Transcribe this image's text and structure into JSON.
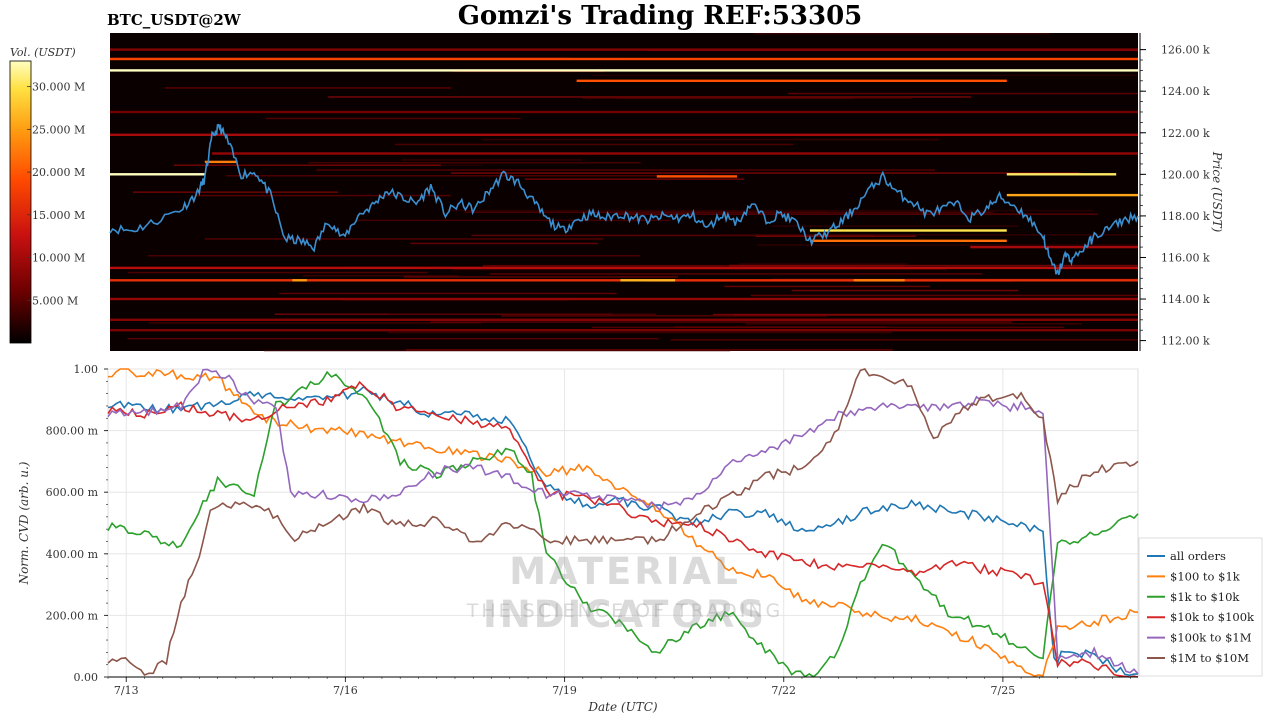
{
  "title": "Gomzi's Trading REF:53305",
  "pair_label": "BTC_USDT@2W",
  "watermark": {
    "title": "MATERIAL INDICATORS",
    "subtitle": "THE SCIENCE OF TRADING"
  },
  "colors": {
    "background": "#ffffff",
    "heatmap_bg": "#0a0000",
    "price_line": "#3a8fd0",
    "grid": "#e6e6e6"
  },
  "chart_data": [
    {
      "type": "heatmap",
      "name": "orderbook-heatmap",
      "ylabel": "Price (USDT)",
      "ylim": [
        111500,
        126800
      ],
      "yticks": [
        112000,
        114000,
        116000,
        118000,
        120000,
        122000,
        124000,
        126000
      ],
      "ytick_labels": [
        "112.00 k",
        "114.00 k",
        "116.00 k",
        "118.00 k",
        "120.00 k",
        "122.00 k",
        "124.00 k",
        "126.00 k"
      ],
      "xlim": [
        0,
        14.1
      ],
      "colorbar": {
        "label": "Vol. (USDT)",
        "range": [
          0,
          33000000
        ],
        "ticks": [
          5000000,
          10000000,
          15000000,
          20000000,
          25000000,
          30000000
        ],
        "tick_labels": [
          "5.000 M",
          "10.000 M",
          "15.000 M",
          "20.000 M",
          "25.000 M",
          "30.000 M"
        ],
        "gradient": [
          "#000000",
          "#6b0000",
          "#c81010",
          "#ff4a00",
          "#ff9a10",
          "#ffe040",
          "#ffffc0"
        ]
      },
      "walls": [
        {
          "price": 125000,
          "x0": 0,
          "x1": 14.1,
          "vol": 33000000
        },
        {
          "price": 125550,
          "x0": 0,
          "x1": 14.1,
          "vol": 16000000
        },
        {
          "price": 124500,
          "x0": 6.4,
          "x1": 12.3,
          "vol": 17000000
        },
        {
          "price": 120000,
          "x0": 0,
          "x1": 1.3,
          "vol": 33000000
        },
        {
          "price": 120000,
          "x0": 12.3,
          "x1": 13.8,
          "vol": 29000000
        },
        {
          "price": 119900,
          "x0": 7.5,
          "x1": 8.6,
          "vol": 17000000
        },
        {
          "price": 119000,
          "x0": 12.3,
          "x1": 14.1,
          "vol": 23000000
        },
        {
          "price": 121900,
          "x0": 0,
          "x1": 14.1,
          "vol": 9000000
        },
        {
          "price": 121000,
          "x0": 1.4,
          "x1": 14.1,
          "vol": 8000000
        },
        {
          "price": 120600,
          "x0": 1.3,
          "x1": 1.75,
          "vol": 20000000
        },
        {
          "price": 117300,
          "x0": 9.6,
          "x1": 12.3,
          "vol": 28000000
        },
        {
          "price": 116800,
          "x0": 9.6,
          "x1": 12.3,
          "vol": 19000000
        },
        {
          "price": 116500,
          "x0": 11.8,
          "x1": 14.1,
          "vol": 9000000
        },
        {
          "price": 115500,
          "x0": 0,
          "x1": 14.1,
          "vol": 10000000
        },
        {
          "price": 114900,
          "x0": 0,
          "x1": 14.1,
          "vol": 14000000
        },
        {
          "price": 114900,
          "x0": 7.0,
          "x1": 7.75,
          "vol": 24000000
        },
        {
          "price": 114900,
          "x0": 2.5,
          "x1": 2.7,
          "vol": 22000000
        },
        {
          "price": 114900,
          "x0": 10.2,
          "x1": 10.9,
          "vol": 20000000
        },
        {
          "price": 114000,
          "x0": 0,
          "x1": 14.1,
          "vol": 8000000
        },
        {
          "price": 113000,
          "x0": 0,
          "x1": 14.1,
          "vol": 7000000
        },
        {
          "price": 112500,
          "x0": 0,
          "x1": 14.1,
          "vol": 6500000
        },
        {
          "price": 123000,
          "x0": 0,
          "x1": 14.1,
          "vol": 6000000
        },
        {
          "price": 126000,
          "x0": 0,
          "x1": 14.1,
          "vol": 7000000
        }
      ],
      "price_series": {
        "name": "price",
        "points": [
          [
            0,
            117400
          ],
          [
            0.3,
            117300
          ],
          [
            0.6,
            117700
          ],
          [
            1.0,
            118400
          ],
          [
            1.2,
            119100
          ],
          [
            1.3,
            119800
          ],
          [
            1.4,
            121800
          ],
          [
            1.5,
            122300
          ],
          [
            1.6,
            121700
          ],
          [
            1.8,
            120000
          ],
          [
            2.0,
            120100
          ],
          [
            2.2,
            119000
          ],
          [
            2.4,
            116900
          ],
          [
            2.6,
            116800
          ],
          [
            2.8,
            116500
          ],
          [
            3.0,
            117800
          ],
          [
            3.2,
            116900
          ],
          [
            3.4,
            118000
          ],
          [
            3.6,
            118500
          ],
          [
            3.8,
            119200
          ],
          [
            4.0,
            118900
          ],
          [
            4.2,
            118600
          ],
          [
            4.4,
            119400
          ],
          [
            4.6,
            118100
          ],
          [
            4.8,
            118600
          ],
          [
            5.0,
            118300
          ],
          [
            5.2,
            119200
          ],
          [
            5.4,
            120000
          ],
          [
            5.6,
            119600
          ],
          [
            5.8,
            118700
          ],
          [
            6.0,
            117800
          ],
          [
            6.2,
            117300
          ],
          [
            6.4,
            117800
          ],
          [
            6.6,
            118100
          ],
          [
            6.8,
            117900
          ],
          [
            7.0,
            118100
          ],
          [
            7.2,
            117900
          ],
          [
            7.4,
            117800
          ],
          [
            7.6,
            118000
          ],
          [
            7.8,
            117900
          ],
          [
            8.0,
            118000
          ],
          [
            8.2,
            117400
          ],
          [
            8.4,
            118100
          ],
          [
            8.6,
            117700
          ],
          [
            8.8,
            118600
          ],
          [
            9.0,
            117800
          ],
          [
            9.2,
            118100
          ],
          [
            9.4,
            117700
          ],
          [
            9.6,
            116800
          ],
          [
            9.8,
            117100
          ],
          [
            10.0,
            117600
          ],
          [
            10.2,
            118300
          ],
          [
            10.4,
            119200
          ],
          [
            10.6,
            119900
          ],
          [
            10.8,
            119100
          ],
          [
            11.0,
            118700
          ],
          [
            11.2,
            118100
          ],
          [
            11.4,
            118300
          ],
          [
            11.6,
            118600
          ],
          [
            11.8,
            117900
          ],
          [
            12.0,
            118300
          ],
          [
            12.2,
            118900
          ],
          [
            12.4,
            118500
          ],
          [
            12.6,
            117900
          ],
          [
            12.8,
            117000
          ],
          [
            12.9,
            115800
          ],
          [
            13.0,
            115200
          ],
          [
            13.1,
            116100
          ],
          [
            13.2,
            115900
          ],
          [
            13.4,
            116600
          ],
          [
            13.5,
            117000
          ],
          [
            13.7,
            117400
          ],
          [
            13.9,
            117800
          ],
          [
            14.1,
            118000
          ]
        ]
      }
    },
    {
      "type": "line",
      "name": "normalized-cvd",
      "title": "",
      "xlabel": "Date (UTC)",
      "ylabel": "Norm. CVD (arb. u.)",
      "ylim": [
        0,
        1
      ],
      "yticks": [
        0,
        0.2,
        0.4,
        0.6,
        0.8,
        1.0
      ],
      "ytick_labels": [
        "0.00",
        "200.00 m",
        "400.00 m",
        "600.00 m",
        "800.00 m",
        "1.00"
      ],
      "xlim": [
        0,
        14.1
      ],
      "xticks": [
        0.25,
        3.25,
        6.25,
        9.25,
        12.25
      ],
      "xtick_labels": [
        "7/13",
        "7/16",
        "7/19",
        "7/22",
        "7/25"
      ],
      "legend": "right",
      "series": [
        {
          "name": "all orders",
          "color": "#1f77b4",
          "x": [
            0,
            0.5,
            1.0,
            1.5,
            2.0,
            2.5,
            3.0,
            3.5,
            4.0,
            4.5,
            5.0,
            5.5,
            6.0,
            6.5,
            7.0,
            7.5,
            8.0,
            8.5,
            9.0,
            9.5,
            10.0,
            10.5,
            11.0,
            11.5,
            12.0,
            12.5,
            12.8,
            12.95,
            13.1,
            13.5,
            13.8,
            14.1
          ],
          "y": [
            0.89,
            0.87,
            0.87,
            0.89,
            0.92,
            0.91,
            0.9,
            0.93,
            0.89,
            0.85,
            0.85,
            0.83,
            0.62,
            0.56,
            0.57,
            0.55,
            0.5,
            0.53,
            0.53,
            0.48,
            0.5,
            0.55,
            0.56,
            0.54,
            0.52,
            0.49,
            0.47,
            0.05,
            0.08,
            0.07,
            0.03,
            0.01
          ]
        },
        {
          "name": "$100 to $1k",
          "color": "#ff7f0e",
          "x": [
            0,
            0.5,
            1.0,
            1.5,
            2.0,
            2.5,
            3.0,
            3.5,
            4.0,
            4.5,
            5.0,
            5.5,
            6.0,
            6.5,
            7.0,
            7.5,
            8.0,
            8.5,
            9.0,
            9.5,
            10.0,
            10.5,
            11.0,
            11.5,
            12.0,
            12.5,
            12.8,
            13.0,
            13.5,
            14.1
          ],
          "y": [
            0.99,
            0.99,
            0.98,
            0.97,
            0.85,
            0.82,
            0.8,
            0.79,
            0.76,
            0.74,
            0.72,
            0.7,
            0.66,
            0.68,
            0.61,
            0.55,
            0.45,
            0.35,
            0.33,
            0.25,
            0.23,
            0.2,
            0.19,
            0.15,
            0.1,
            0.02,
            0.0,
            0.16,
            0.18,
            0.21
          ]
        },
        {
          "name": "$1k to $10k",
          "color": "#2ca02c",
          "x": [
            0,
            0.5,
            1.0,
            1.3,
            1.5,
            2.0,
            2.3,
            2.6,
            3.0,
            3.3,
            3.6,
            4.0,
            4.5,
            5.0,
            5.5,
            5.8,
            6.0,
            6.5,
            7.0,
            7.5,
            8.0,
            8.5,
            9.0,
            9.3,
            9.6,
            10.0,
            10.3,
            10.6,
            11.0,
            11.5,
            12.0,
            12.5,
            12.8,
            13.0,
            13.5,
            14.1
          ],
          "y": [
            0.49,
            0.47,
            0.42,
            0.56,
            0.64,
            0.6,
            0.88,
            0.92,
            0.98,
            0.95,
            0.88,
            0.7,
            0.66,
            0.7,
            0.74,
            0.65,
            0.4,
            0.24,
            0.18,
            0.08,
            0.16,
            0.21,
            0.09,
            0.02,
            0.0,
            0.09,
            0.3,
            0.44,
            0.34,
            0.21,
            0.16,
            0.1,
            0.07,
            0.43,
            0.46,
            0.53
          ]
        },
        {
          "name": "$10k to $100k",
          "color": "#d62728",
          "x": [
            0,
            0.5,
            1.0,
            1.5,
            2.0,
            2.5,
            3.0,
            3.5,
            4.0,
            4.5,
            5.0,
            5.5,
            6.0,
            6.5,
            7.0,
            7.5,
            8.0,
            8.5,
            9.0,
            9.5,
            10.0,
            10.5,
            11.0,
            11.5,
            12.0,
            12.5,
            12.8,
            13.0,
            13.5,
            14.1
          ],
          "y": [
            0.87,
            0.85,
            0.88,
            0.85,
            0.84,
            0.88,
            0.9,
            0.95,
            0.87,
            0.85,
            0.83,
            0.8,
            0.6,
            0.58,
            0.55,
            0.5,
            0.5,
            0.45,
            0.4,
            0.37,
            0.36,
            0.36,
            0.34,
            0.37,
            0.35,
            0.33,
            0.3,
            0.05,
            0.04,
            0.0
          ]
        },
        {
          "name": "$100k to $1M",
          "color": "#9467bd",
          "x": [
            0,
            0.5,
            1.0,
            1.3,
            1.6,
            2.0,
            2.3,
            2.5,
            3.0,
            3.5,
            4.0,
            4.5,
            5.0,
            5.5,
            6.0,
            6.5,
            7.0,
            7.5,
            8.0,
            8.5,
            9.0,
            9.5,
            10.0,
            10.5,
            11.0,
            11.5,
            12.0,
            12.3,
            12.5,
            12.8,
            13.0,
            13.5,
            14.1
          ],
          "y": [
            0.86,
            0.86,
            0.88,
            0.99,
            0.98,
            0.89,
            0.88,
            0.6,
            0.59,
            0.58,
            0.6,
            0.67,
            0.68,
            0.65,
            0.59,
            0.59,
            0.58,
            0.55,
            0.57,
            0.7,
            0.74,
            0.78,
            0.85,
            0.88,
            0.87,
            0.88,
            0.9,
            0.87,
            0.88,
            0.86,
            0.06,
            0.08,
            0.01
          ]
        },
        {
          "name": "$1M to $10M",
          "color": "#8c564b",
          "x": [
            0,
            0.3,
            0.5,
            0.8,
            1.0,
            1.2,
            1.4,
            1.8,
            2.2,
            2.5,
            3.0,
            3.5,
            4.0,
            4.5,
            5.0,
            5.5,
            6.0,
            6.5,
            7.0,
            7.5,
            8.0,
            8.5,
            9.0,
            9.5,
            10.0,
            10.3,
            10.6,
            11.0,
            11.3,
            11.6,
            12.0,
            12.5,
            12.8,
            13.0,
            13.5,
            14.1
          ],
          "y": [
            0.06,
            0.05,
            0.01,
            0.05,
            0.25,
            0.35,
            0.55,
            0.56,
            0.55,
            0.45,
            0.5,
            0.55,
            0.49,
            0.51,
            0.44,
            0.5,
            0.45,
            0.44,
            0.45,
            0.44,
            0.52,
            0.58,
            0.65,
            0.68,
            0.8,
            1.0,
            0.98,
            0.95,
            0.78,
            0.85,
            0.9,
            0.92,
            0.83,
            0.58,
            0.67,
            0.7
          ]
        }
      ]
    }
  ]
}
